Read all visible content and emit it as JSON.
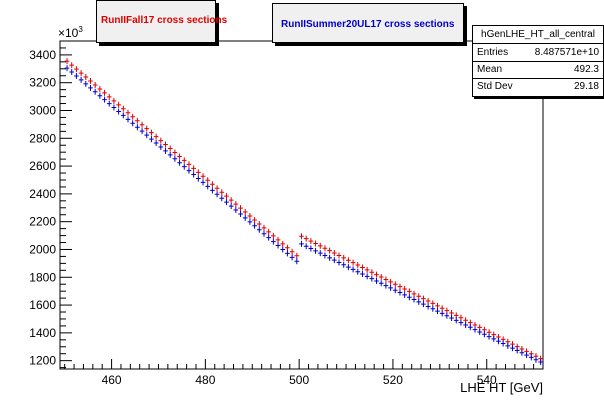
{
  "chart_data": {
    "type": "scatter",
    "title": "",
    "xlabel": "LHE HT [GeV]",
    "ylabel": "",
    "y_exponent_label": "×10",
    "y_exponent_power": "3",
    "xlim": [
      449,
      552
    ],
    "ylim": [
      1140,
      3500
    ],
    "x_ticks": [
      460,
      480,
      500,
      520,
      540
    ],
    "x_tick_labels": [
      "460",
      "480",
      "500",
      "520",
      "540"
    ],
    "y_ticks": [
      1200,
      1400,
      1600,
      1800,
      2000,
      2200,
      2400,
      2600,
      2800,
      3000,
      3200,
      3400
    ],
    "y_tick_labels": [
      "1200",
      "1400",
      "1600",
      "1800",
      "2000",
      "2200",
      "2400",
      "2600",
      "2800",
      "3000",
      "3200",
      "3400"
    ],
    "grid": false,
    "series": [
      {
        "name": "RunIIFall17 cross sections",
        "color": "#e00000",
        "segments": [
          {
            "x_start": 450.5,
            "x_end": 499.5,
            "y_start": 3355,
            "y_end": 1955
          },
          {
            "x_start": 500.5,
            "x_end": 551.5,
            "y_start": 2095,
            "y_end": 1215
          }
        ]
      },
      {
        "name": "RunIISummer20UL17 cross sections",
        "color": "#0000d0",
        "segments": [
          {
            "x_start": 450.5,
            "x_end": 499.5,
            "y_start": 3305,
            "y_end": 1915
          },
          {
            "x_start": 500.5,
            "x_end": 551.5,
            "y_start": 2040,
            "y_end": 1190
          }
        ]
      }
    ]
  },
  "legend": {
    "entry_1": "RunIIFall17 cross sections",
    "entry_2": "RunIISummer20UL17 cross sections"
  },
  "stats_box": {
    "title": "hGenLHE_HT_all_central",
    "rows": [
      {
        "key": "Entries",
        "value": "8.487571e+10"
      },
      {
        "key": "Mean",
        "value": "492.3"
      },
      {
        "key": "Std Dev",
        "value": "29.18"
      }
    ]
  }
}
